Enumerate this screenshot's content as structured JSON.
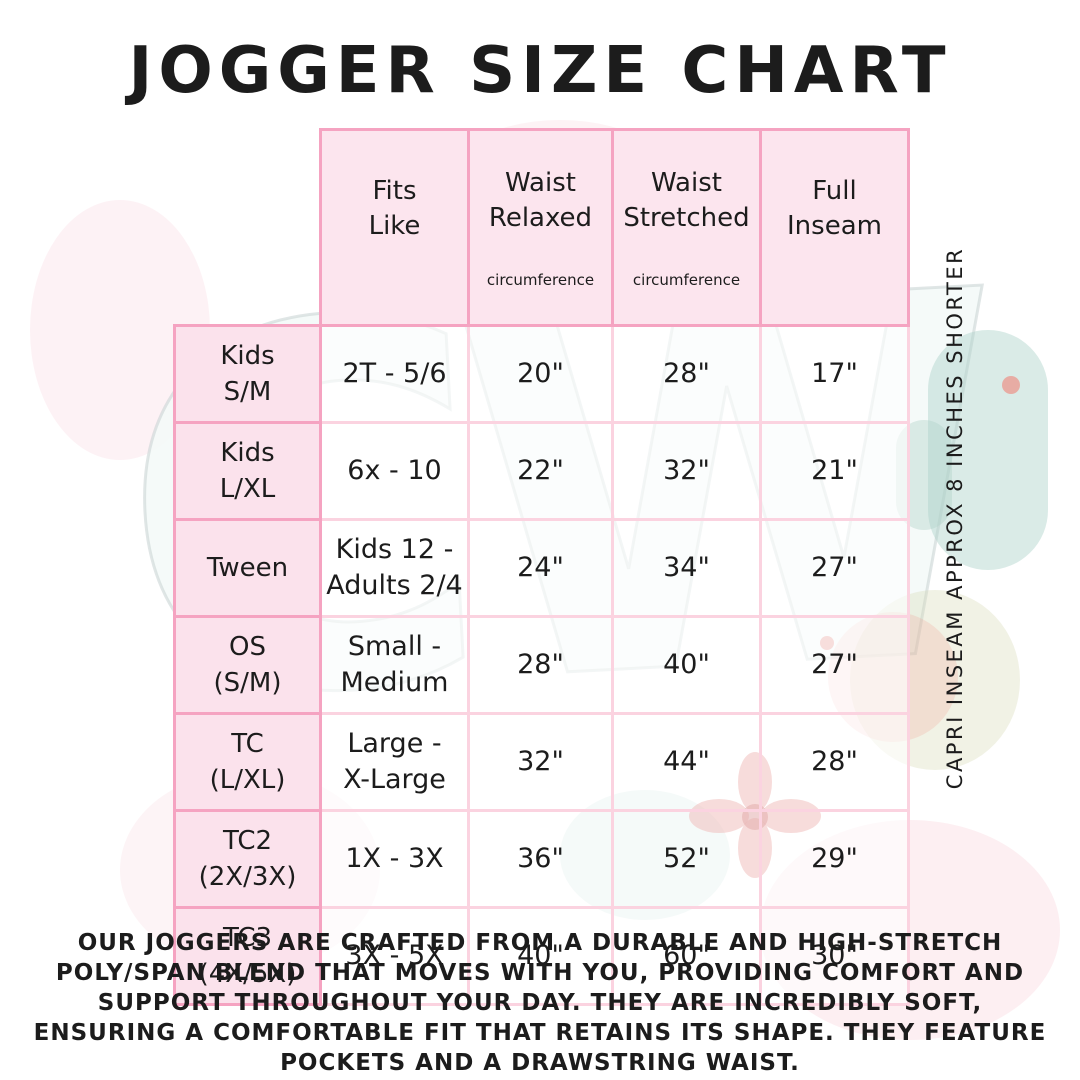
{
  "title": "JOGGER SIZE CHART",
  "side_note": "CAPRI INSEAM APPROX 8 INCHES SHORTER",
  "watermark": {
    "initials": "CW"
  },
  "table": {
    "columns": [
      {
        "label": "Fits\nLike",
        "sub": ""
      },
      {
        "label": "Waist\nRelaxed",
        "sub": "circumference"
      },
      {
        "label": "Waist\nStretched",
        "sub": "circumference"
      },
      {
        "label": "Full\nInseam",
        "sub": ""
      }
    ],
    "rows": [
      {
        "label": "Kids\nS/M",
        "fits": "2T - 5/6",
        "relaxed": "20\"",
        "stretched": "28\"",
        "inseam": "17\""
      },
      {
        "label": "Kids\nL/XL",
        "fits": "6x - 10",
        "relaxed": "22\"",
        "stretched": "32\"",
        "inseam": "21\""
      },
      {
        "label": "Tween",
        "fits": "Kids 12 -\nAdults 2/4",
        "relaxed": "24\"",
        "stretched": "34\"",
        "inseam": "27\""
      },
      {
        "label": "OS\n(S/M)",
        "fits": "Small -\nMedium",
        "relaxed": "28\"",
        "stretched": "40\"",
        "inseam": "27\""
      },
      {
        "label": "TC\n(L/XL)",
        "fits": "Large -\nX-Large",
        "relaxed": "32\"",
        "stretched": "44\"",
        "inseam": "28\""
      },
      {
        "label": "TC2\n(2X/3X)",
        "fits": "1X - 3X",
        "relaxed": "36\"",
        "stretched": "52\"",
        "inseam": "29\""
      },
      {
        "label": "TC3\n(4X/5X)",
        "fits": "3X - 5X",
        "relaxed": "40\"",
        "stretched": "60\"",
        "inseam": "30\""
      }
    ]
  },
  "footer": {
    "lines": [
      "OUR JOGGERS ARE CRAFTED FROM A DURABLE AND HIGH-STRETCH",
      "POLY/SPAN BLEND THAT MOVES WITH YOU, PROVIDING COMFORT AND",
      "SUPPORT THROUGHOUT YOUR DAY. THEY ARE INCREDIBLY SOFT,",
      "ENSURING A COMFORTABLE FIT THAT RETAINS ITS SHAPE. THEY FEATURE",
      "POCKETS AND A DRAWSTRING WAIST."
    ]
  },
  "colors": {
    "border_strong": "#f5a3c1",
    "border_light": "#fbd3e0",
    "header_fill": "#fce5ee",
    "label_fill": "#fbe2ec",
    "text": "#1c1c1c",
    "watermark_teal": "#aed3ca",
    "watermark_red": "#d84842",
    "watermark_pink": "#f6b8c4"
  }
}
